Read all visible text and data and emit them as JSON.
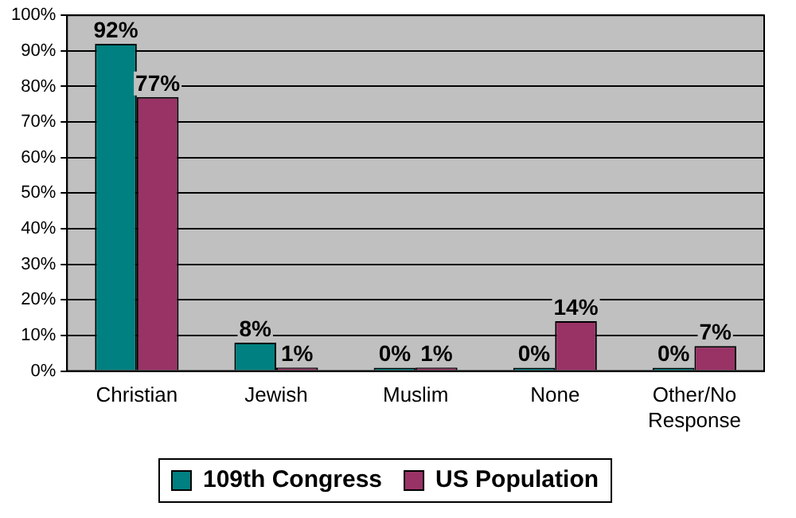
{
  "chart_data": {
    "type": "bar",
    "categories": [
      "Christian",
      "Jewish",
      "Muslim",
      "None",
      "Other/No Response"
    ],
    "series": [
      {
        "name": "109th Congress",
        "color": "#008080",
        "values": [
          92,
          8,
          0,
          0,
          0
        ],
        "value_labels": [
          "92%",
          "8%",
          "0%",
          "0%",
          "0%"
        ]
      },
      {
        "name": "US Population",
        "color": "#993366",
        "values": [
          77,
          1,
          1,
          14,
          7
        ],
        "value_labels": [
          "77%",
          "1%",
          "1%",
          "14%",
          "7%"
        ]
      }
    ],
    "ylim": [
      0,
      100
    ],
    "yticks": [
      {
        "value": 0,
        "label": "0%"
      },
      {
        "value": 10,
        "label": "10%"
      },
      {
        "value": 20,
        "label": "20%"
      },
      {
        "value": 30,
        "label": "30%"
      },
      {
        "value": 40,
        "label": "40%"
      },
      {
        "value": 50,
        "label": "50%"
      },
      {
        "value": 60,
        "label": "60%"
      },
      {
        "value": 70,
        "label": "70%"
      },
      {
        "value": 80,
        "label": "80%"
      },
      {
        "value": 90,
        "label": "90%"
      },
      {
        "value": 100,
        "label": "100%"
      }
    ],
    "grid": "y",
    "legend": "bottom"
  }
}
